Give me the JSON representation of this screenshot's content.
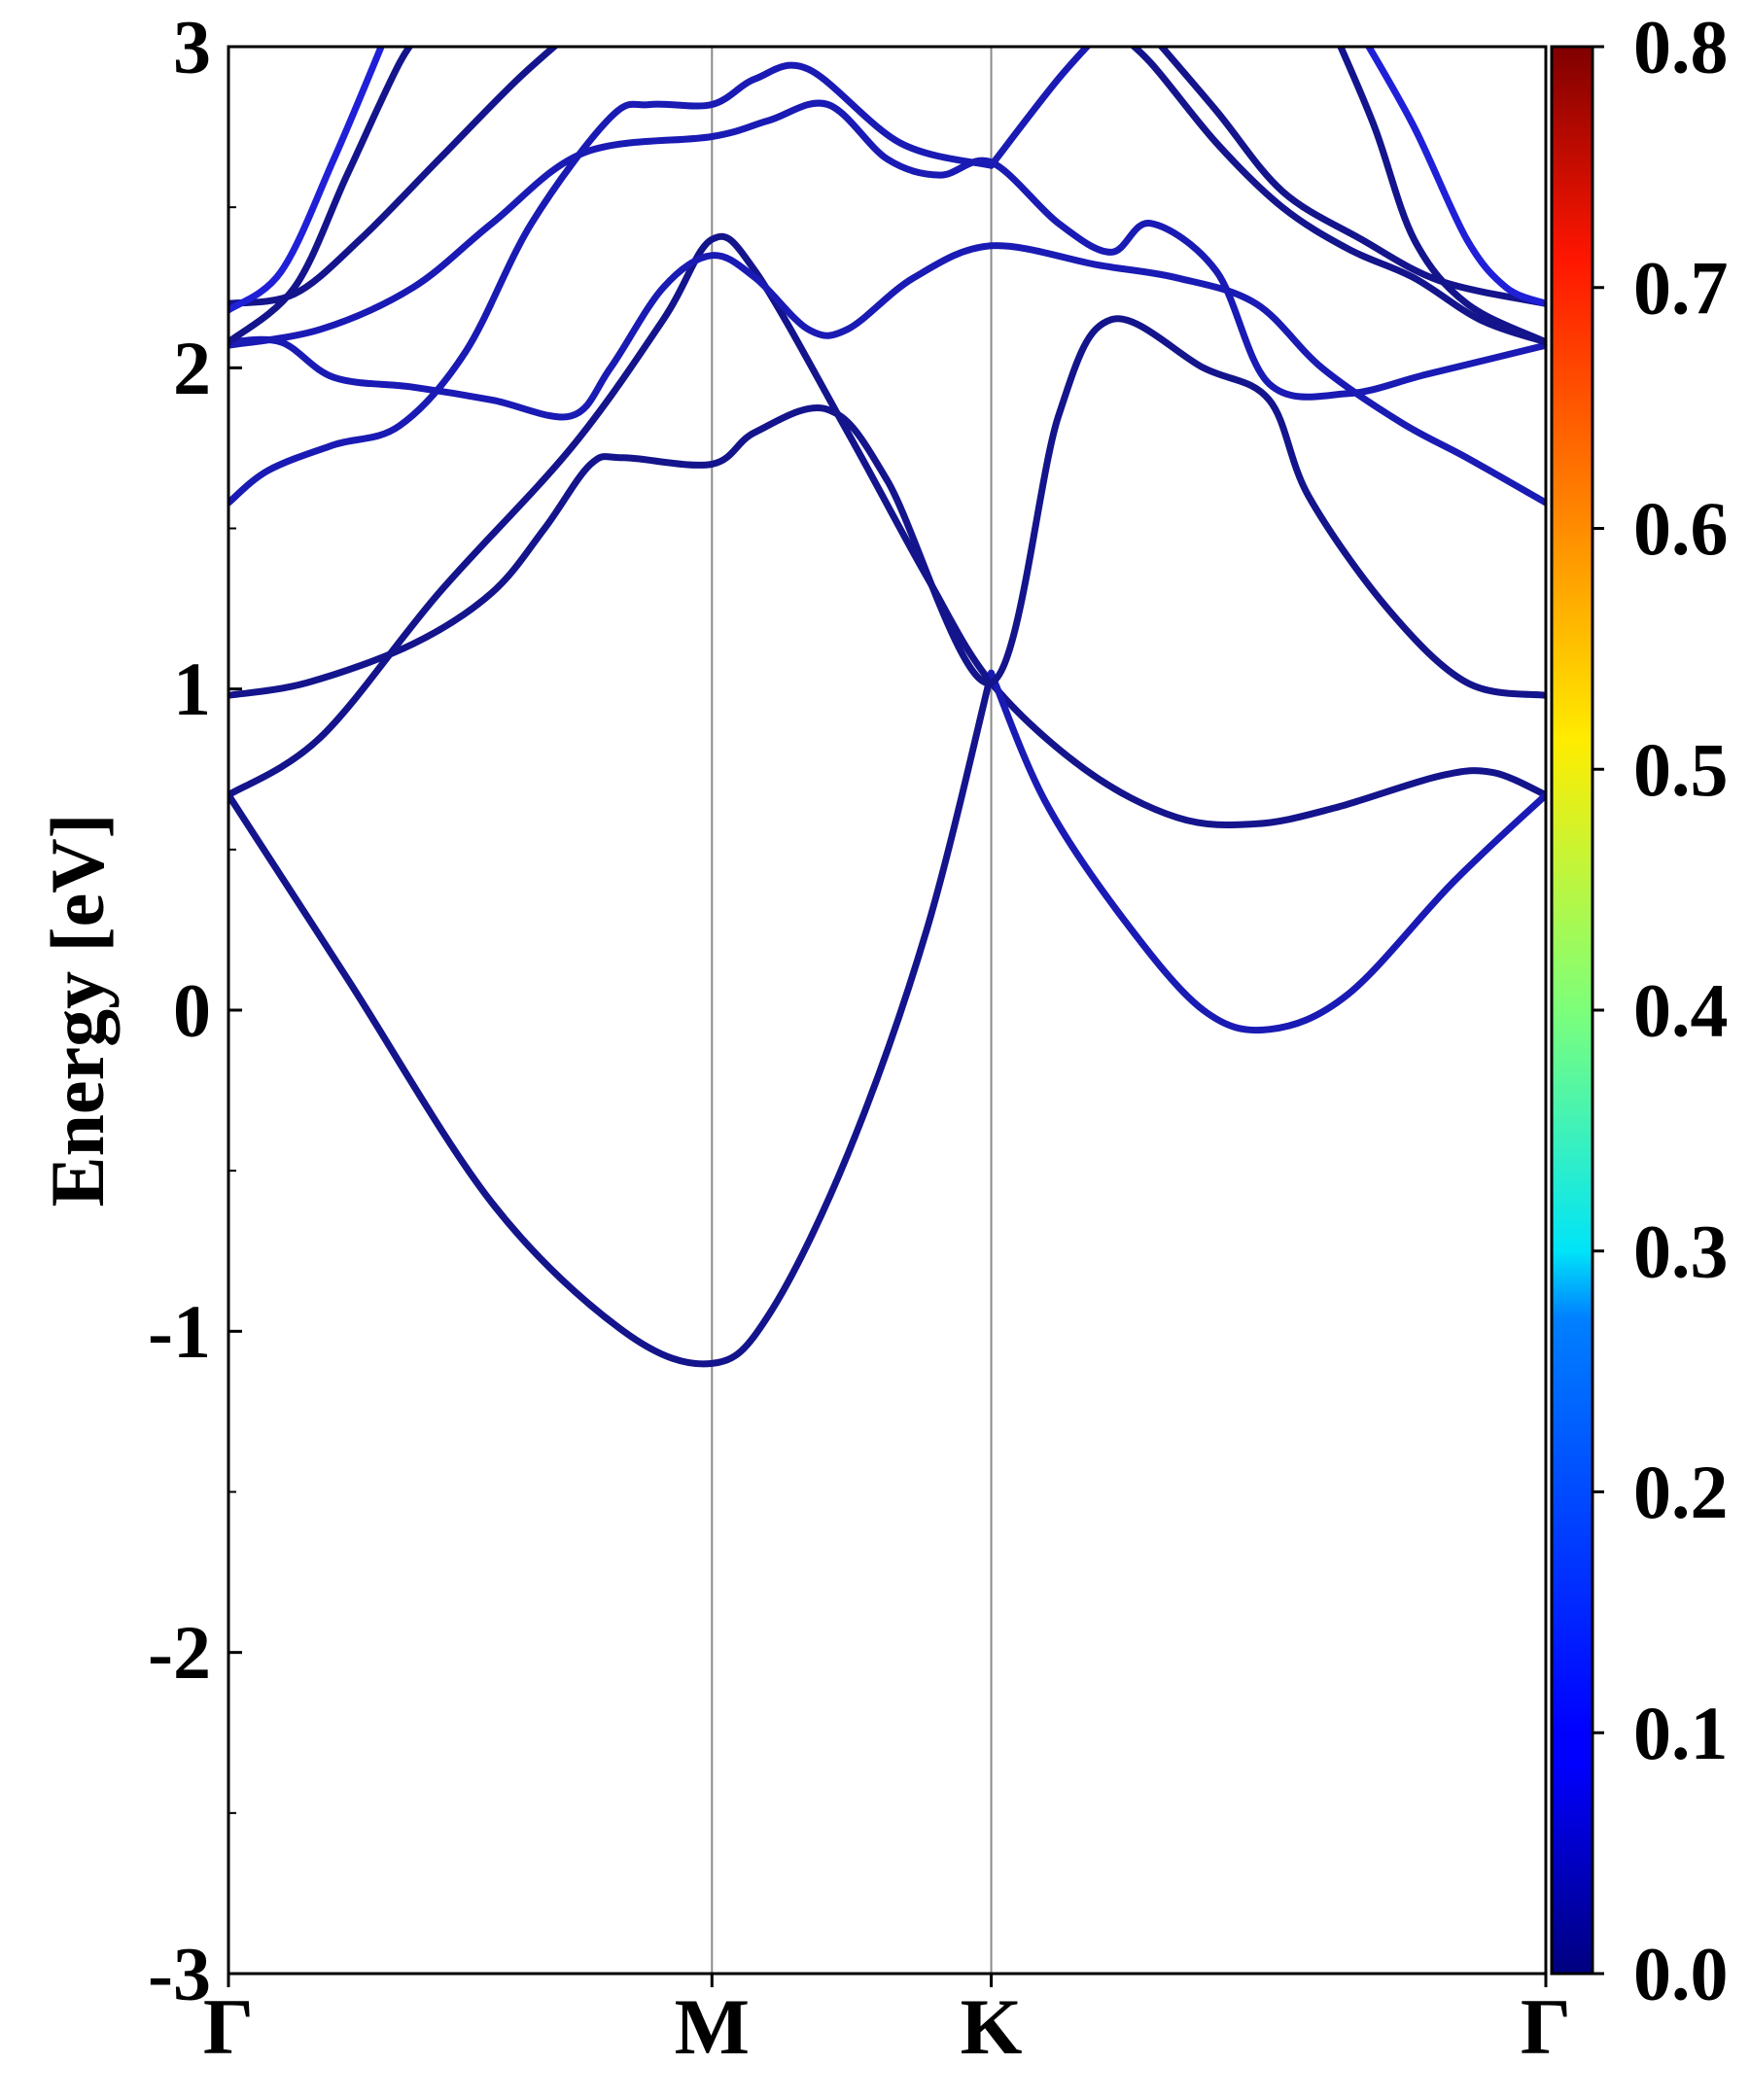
{
  "chart_data": {
    "type": "line",
    "title": "",
    "xlabel": "",
    "ylabel": "Energy [eV]",
    "ylim": [
      -3,
      3
    ],
    "yticks": [
      -3,
      -2,
      -1,
      0,
      1,
      2,
      3
    ],
    "yticks_minor": [
      -2.5,
      -1.5,
      -0.5,
      0.5,
      1.5,
      2.5
    ],
    "x_range": [
      0,
      1
    ],
    "kpoints": [
      {
        "label": "Γ",
        "x": 0.0
      },
      {
        "label": "M",
        "x": 0.367
      },
      {
        "label": "K",
        "x": 0.579
      },
      {
        "label": "Γ",
        "x": 1.0
      }
    ],
    "grid": false,
    "colorbar": {
      "colormap": "jet",
      "range": [
        0.0,
        0.8
      ],
      "ticks": [
        "0.0",
        "0.1",
        "0.2",
        "0.3",
        "0.4",
        "0.5",
        "0.6",
        "0.7",
        "0.8"
      ]
    },
    "series": [
      {
        "color": "#14148c",
        "points": [
          [
            0.0,
            0.67
          ],
          [
            0.09,
            0.1
          ],
          [
            0.2,
            -0.6
          ],
          [
            0.3,
            -1.0
          ],
          [
            0.367,
            -1.1
          ],
          [
            0.41,
            -0.95
          ],
          [
            0.47,
            -0.45
          ],
          [
            0.53,
            0.25
          ],
          [
            0.579,
            1.05
          ]
        ]
      },
      {
        "color": "#14148c",
        "points": [
          [
            0.0,
            0.67
          ],
          [
            0.07,
            0.85
          ],
          [
            0.16,
            1.3
          ],
          [
            0.26,
            1.75
          ],
          [
            0.33,
            2.15
          ],
          [
            0.367,
            2.4
          ],
          [
            0.4,
            2.3
          ],
          [
            0.47,
            1.8
          ],
          [
            0.53,
            1.35
          ],
          [
            0.579,
            1.02
          ],
          [
            0.65,
            0.75
          ],
          [
            0.72,
            0.6
          ],
          [
            0.78,
            0.58
          ],
          [
            0.84,
            0.63
          ],
          [
            0.92,
            0.73
          ],
          [
            0.96,
            0.74
          ],
          [
            1.0,
            0.67
          ]
        ]
      },
      {
        "color": "#1a1ab4",
        "points": [
          [
            0.579,
            1.05
          ],
          [
            0.62,
            0.65
          ],
          [
            0.68,
            0.28
          ],
          [
            0.74,
            0.0
          ],
          [
            0.79,
            -0.06
          ],
          [
            0.85,
            0.05
          ],
          [
            0.93,
            0.4
          ],
          [
            1.0,
            0.67
          ]
        ]
      },
      {
        "color": "#14148c",
        "points": [
          [
            0.0,
            0.98
          ],
          [
            0.06,
            1.02
          ],
          [
            0.14,
            1.14
          ],
          [
            0.2,
            1.3
          ],
          [
            0.24,
            1.5
          ],
          [
            0.275,
            1.7
          ],
          [
            0.3,
            1.72
          ],
          [
            0.367,
            1.7
          ],
          [
            0.4,
            1.8
          ],
          [
            0.455,
            1.87
          ],
          [
            0.5,
            1.65
          ],
          [
            0.579,
            1.02
          ],
          [
            0.63,
            1.85
          ],
          [
            0.67,
            2.15
          ],
          [
            0.74,
            2.0
          ],
          [
            0.79,
            1.9
          ],
          [
            0.82,
            1.6
          ],
          [
            0.88,
            1.25
          ],
          [
            0.94,
            1.02
          ],
          [
            1.0,
            0.98
          ]
        ]
      },
      {
        "color": "#1a1ab4",
        "points": [
          [
            0.0,
            1.58
          ],
          [
            0.03,
            1.68
          ],
          [
            0.08,
            1.76
          ],
          [
            0.13,
            1.82
          ],
          [
            0.18,
            2.05
          ],
          [
            0.23,
            2.45
          ],
          [
            0.29,
            2.78
          ],
          [
            0.32,
            2.82
          ],
          [
            0.367,
            2.82
          ],
          [
            0.4,
            2.9
          ],
          [
            0.44,
            2.93
          ],
          [
            0.51,
            2.7
          ],
          [
            0.579,
            2.63
          ]
        ]
      },
      {
        "color": "#1a1ab4",
        "points": [
          [
            0.579,
            2.63
          ],
          [
            0.63,
            2.9
          ],
          [
            0.67,
            3.08
          ]
        ]
      },
      {
        "color": "#1a1ab4",
        "points": [
          [
            0.0,
            2.07
          ],
          [
            0.07,
            2.12
          ],
          [
            0.14,
            2.25
          ],
          [
            0.2,
            2.45
          ],
          [
            0.27,
            2.67
          ],
          [
            0.367,
            2.72
          ],
          [
            0.41,
            2.77
          ],
          [
            0.455,
            2.82
          ],
          [
            0.5,
            2.65
          ],
          [
            0.54,
            2.6
          ],
          [
            0.579,
            2.64
          ],
          [
            0.63,
            2.45
          ],
          [
            0.67,
            2.36
          ],
          [
            0.7,
            2.45
          ],
          [
            0.75,
            2.3
          ],
          [
            0.79,
            1.95
          ],
          [
            0.85,
            1.92
          ],
          [
            0.91,
            1.98
          ],
          [
            1.0,
            2.07
          ]
        ]
      },
      {
        "color": "#1a1ab4",
        "points": [
          [
            0.0,
            2.08
          ],
          [
            0.04,
            2.08
          ],
          [
            0.08,
            1.97
          ],
          [
            0.14,
            1.94
          ],
          [
            0.2,
            1.9
          ],
          [
            0.26,
            1.85
          ],
          [
            0.29,
            2.0
          ],
          [
            0.33,
            2.25
          ],
          [
            0.367,
            2.35
          ],
          [
            0.4,
            2.28
          ],
          [
            0.44,
            2.12
          ],
          [
            0.47,
            2.12
          ],
          [
            0.52,
            2.28
          ],
          [
            0.579,
            2.38
          ],
          [
            0.66,
            2.32
          ],
          [
            0.72,
            2.28
          ],
          [
            0.78,
            2.2
          ],
          [
            0.83,
            2.0
          ],
          [
            0.89,
            1.83
          ],
          [
            0.94,
            1.72
          ],
          [
            1.0,
            1.58
          ]
        ]
      },
      {
        "color": "#14148c",
        "points": [
          [
            0.0,
            2.2
          ],
          [
            0.05,
            2.23
          ],
          [
            0.1,
            2.4
          ],
          [
            0.16,
            2.65
          ],
          [
            0.22,
            2.9
          ],
          [
            0.27,
            3.08
          ]
        ]
      },
      {
        "color": "#2020d8",
        "points": [
          [
            0.0,
            2.18
          ],
          [
            0.04,
            2.3
          ],
          [
            0.08,
            2.65
          ],
          [
            0.12,
            3.04
          ]
        ]
      },
      {
        "color": "#14148c",
        "points": [
          [
            0.0,
            2.08
          ],
          [
            0.05,
            2.25
          ],
          [
            0.09,
            2.6
          ],
          [
            0.13,
            2.95
          ],
          [
            0.15,
            3.06
          ]
        ]
      },
      {
        "color": "#14148c",
        "points": [
          [
            0.67,
            3.06
          ],
          [
            0.7,
            2.95
          ],
          [
            0.75,
            2.7
          ],
          [
            0.8,
            2.5
          ],
          [
            0.85,
            2.37
          ],
          [
            0.9,
            2.28
          ],
          [
            0.95,
            2.15
          ],
          [
            1.0,
            2.08
          ]
        ]
      },
      {
        "color": "#14148c",
        "points": [
          [
            0.7,
            3.04
          ],
          [
            0.75,
            2.8
          ],
          [
            0.8,
            2.55
          ],
          [
            0.86,
            2.4
          ],
          [
            0.92,
            2.27
          ],
          [
            1.0,
            2.2
          ]
        ]
      },
      {
        "color": "#2020d8",
        "points": [
          [
            0.86,
            3.04
          ],
          [
            0.9,
            2.75
          ],
          [
            0.94,
            2.4
          ],
          [
            0.97,
            2.25
          ],
          [
            1.0,
            2.2
          ]
        ]
      },
      {
        "color": "#14148c",
        "points": [
          [
            0.84,
            3.04
          ],
          [
            0.87,
            2.75
          ],
          [
            0.9,
            2.4
          ],
          [
            0.94,
            2.2
          ],
          [
            1.0,
            2.08
          ]
        ]
      }
    ]
  }
}
